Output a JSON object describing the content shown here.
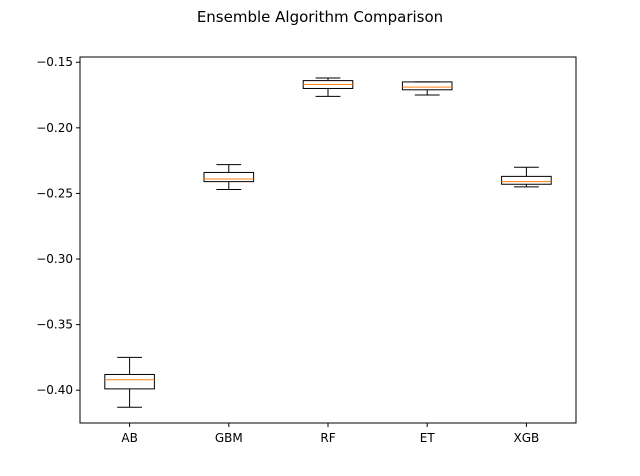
{
  "chart_data": {
    "type": "box",
    "title": "Ensemble Algorithm Comparison",
    "xlabel": "",
    "ylabel": "",
    "categories": [
      "AB",
      "GBM",
      "RF",
      "ET",
      "XGB"
    ],
    "boxes": [
      {
        "whisker_low": -0.413,
        "q1": -0.399,
        "median": -0.392,
        "q3": -0.388,
        "whisker_high": -0.375
      },
      {
        "whisker_low": -0.247,
        "q1": -0.241,
        "median": -0.239,
        "q3": -0.234,
        "whisker_high": -0.228
      },
      {
        "whisker_low": -0.176,
        "q1": -0.17,
        "median": -0.167,
        "q3": -0.164,
        "whisker_high": -0.162
      },
      {
        "whisker_low": -0.175,
        "q1": -0.171,
        "median": -0.169,
        "q3": -0.165,
        "whisker_high": -0.165
      },
      {
        "whisker_low": -0.245,
        "q1": -0.243,
        "median": -0.241,
        "q3": -0.237,
        "whisker_high": -0.23
      }
    ],
    "ylim": [
      -0.425,
      -0.146
    ],
    "yticks": [
      -0.4,
      -0.35,
      -0.3,
      -0.25,
      -0.2,
      -0.15
    ],
    "ytick_labels": [
      "−0.40",
      "−0.35",
      "−0.30",
      "−0.25",
      "−0.20",
      "−0.15"
    ],
    "grid": false,
    "colors": {
      "box": "#000000",
      "median": "#ff7f0e",
      "background": "#ffffff"
    }
  }
}
